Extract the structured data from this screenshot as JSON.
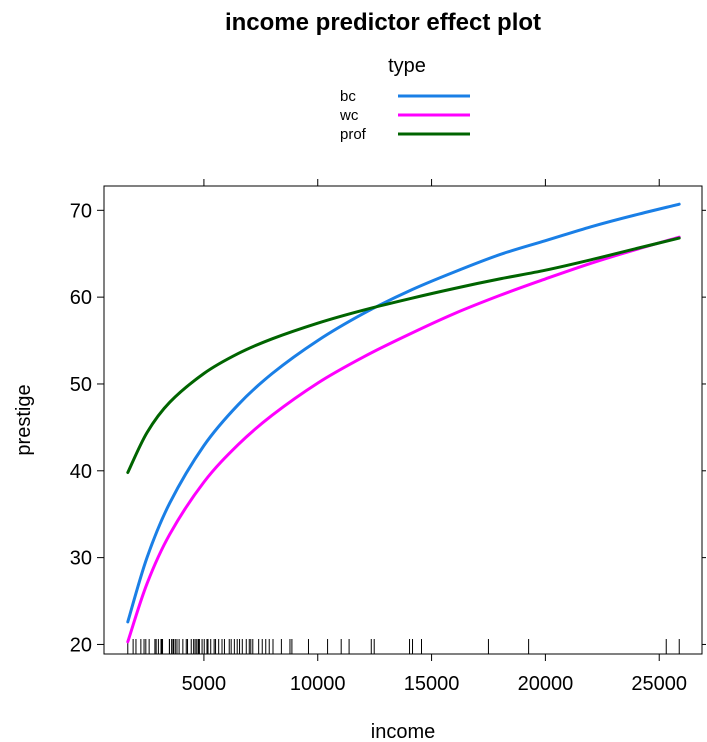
{
  "chart_data": {
    "type": "line",
    "title": "income predictor effect plot",
    "xlabel": "income",
    "ylabel": "prestige",
    "xlim": [
      611,
      26879
    ],
    "ylim": [
      18.9,
      72.8
    ],
    "xticks": [
      5000,
      10000,
      15000,
      20000,
      25000
    ],
    "yticks": [
      20,
      30,
      40,
      50,
      60,
      70
    ],
    "grid": false,
    "legend": {
      "title": "type",
      "placement": "top-center",
      "entries": [
        "bc",
        "wc",
        "prof"
      ]
    },
    "series": [
      {
        "name": "bc",
        "color": "#1a7fe6",
        "x": [
          1656,
          2500,
          3500,
          5000,
          6500,
          8000,
          10000,
          12000,
          14000,
          16000,
          18000,
          20000,
          22000,
          24000,
          25879
        ],
        "y": [
          22.6,
          30.0,
          36.3,
          42.9,
          47.6,
          51.2,
          55.0,
          58.1,
          60.7,
          62.9,
          64.9,
          66.5,
          68.1,
          69.5,
          70.7
        ]
      },
      {
        "name": "wc",
        "color": "#ff00ff",
        "x": [
          1656,
          2500,
          3500,
          5000,
          6500,
          8000,
          10000,
          12000,
          14000,
          16000,
          18000,
          20000,
          22000,
          24000,
          25879
        ],
        "y": [
          20.3,
          27.0,
          32.7,
          38.7,
          43.0,
          46.4,
          50.1,
          53.1,
          55.7,
          58.1,
          60.2,
          62.1,
          63.9,
          65.5,
          66.9
        ]
      },
      {
        "name": "prof",
        "color": "#006400",
        "x": [
          1656,
          2500,
          3500,
          5000,
          6500,
          8000,
          10000,
          12000,
          14000,
          16000,
          18000,
          20000,
          22000,
          24000,
          25879
        ],
        "y": [
          39.8,
          44.4,
          47.9,
          51.2,
          53.5,
          55.2,
          57.0,
          58.5,
          59.8,
          61.0,
          62.1,
          63.1,
          64.3,
          65.6,
          66.8
        ]
      }
    ],
    "rug": [
      1656,
      1890,
      2015,
      2230,
      2370,
      2448,
      2594,
      2847,
      2901,
      3000,
      3116,
      3148,
      3182,
      3485,
      3485,
      3582,
      3643,
      3671,
      3742,
      3816,
      3910,
      4075,
      4224,
      4280,
      4443,
      4549,
      4614,
      4686,
      4753,
      4761,
      4802,
      4919,
      5014,
      5134,
      5180,
      5299,
      5449,
      5511,
      5648,
      5795,
      5902,
      6112,
      6197,
      6337,
      6462,
      6565,
      6686,
      6860,
      6992,
      7059,
      7147,
      7405,
      7562,
      7716,
      7869,
      8034,
      8403,
      8780,
      8865,
      9593,
      10432,
      11030,
      11377,
      12351,
      12480,
      14032,
      14163,
      14558,
      17498,
      19263,
      25308,
      25879
    ]
  }
}
